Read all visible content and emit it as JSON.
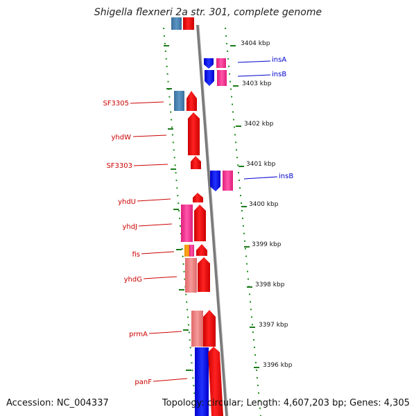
{
  "title": "Shigella flexneri 2a str. 301, complete genome",
  "accession": "Accession: NC_004337",
  "topology": "Topology: circular; Length: 4,607,203 bp; Genes: 4,305",
  "ticks": [
    {
      "label": "3404 kbp"
    },
    {
      "label": "3403 kbp"
    },
    {
      "label": "3402 kbp"
    },
    {
      "label": "3401 kbp"
    },
    {
      "label": "3400 kbp"
    },
    {
      "label": "3399 kbp"
    },
    {
      "label": "3398 kbp"
    },
    {
      "label": "3397 kbp"
    },
    {
      "label": "3396 kbp"
    }
  ],
  "left_genes": [
    {
      "name": "SF3305"
    },
    {
      "name": "yhdW"
    },
    {
      "name": "SF3303"
    },
    {
      "name": "yhdU"
    },
    {
      "name": "yhdJ"
    },
    {
      "name": "fis"
    },
    {
      "name": "yhdG"
    },
    {
      "name": "prmA"
    },
    {
      "name": "panF"
    }
  ],
  "right_genes": [
    {
      "name": "insA"
    },
    {
      "name": "insB"
    },
    {
      "name": "insB"
    }
  ],
  "colors": {
    "cds_red": "#ff0000",
    "pink": "#ff3399",
    "salmon": "#f08080",
    "blue": "#0000ff",
    "steel_blue": "#4682b4",
    "orange": "#ff9900",
    "tick_green": "#1a7a1a",
    "label_red": "#cc0000",
    "label_blue": "#0000cc",
    "backbone": "#888888"
  }
}
